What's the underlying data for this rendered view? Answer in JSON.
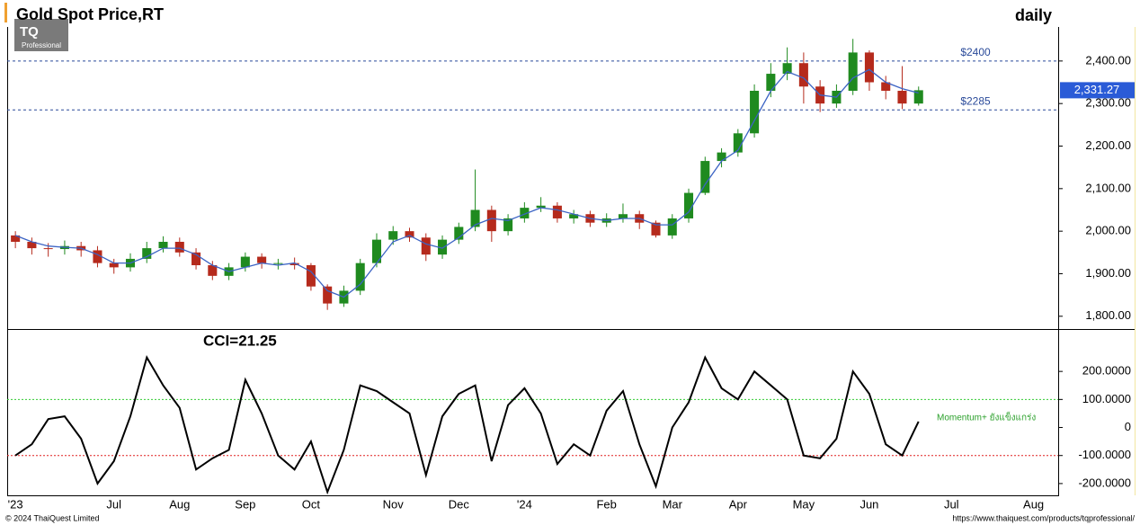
{
  "logo": {
    "mark": "TQ",
    "text": "Professional"
  },
  "footer": {
    "left": "© 2024 ThaiQuest Limited",
    "right": "https://www.thaiquest.com/products/tqprofessional/"
  },
  "chart_data": [
    {
      "type": "candlestick",
      "title": "Gold Spot Price,RT",
      "subtitle": "daily",
      "categories": [
        "'23",
        null,
        null,
        null,
        null,
        null,
        "Jul",
        null,
        null,
        null,
        "Aug",
        null,
        null,
        null,
        "Sep",
        null,
        null,
        null,
        "Oct",
        null,
        null,
        null,
        null,
        "Nov",
        null,
        null,
        null,
        "Dec",
        null,
        null,
        null,
        "'24",
        null,
        null,
        null,
        null,
        "Feb",
        null,
        null,
        null,
        "Mar",
        null,
        null,
        null,
        "Apr",
        null,
        null,
        null,
        "May",
        null,
        null,
        null,
        "Jun",
        null,
        null,
        null,
        null,
        "Jul",
        null,
        null,
        null,
        null,
        "Aug",
        null
      ],
      "open": [
        1990,
        1975,
        1960,
        1958,
        1965,
        1955,
        1925,
        1915,
        1935,
        1960,
        1975,
        1950,
        1920,
        1895,
        1915,
        1940,
        1925,
        1925,
        1920,
        1870,
        1830,
        1860,
        1925,
        1980,
        2000,
        1985,
        1945,
        1980,
        2010,
        2050,
        2000,
        2030,
        2055,
        2060,
        2030,
        2040,
        2020,
        2030,
        2040,
        2020,
        1990,
        2030,
        2090,
        2165,
        2185,
        2230,
        2330,
        2370,
        2395,
        2340,
        2300,
        2330,
        2420,
        2350,
        2330,
        2300,
        null,
        null,
        null,
        null,
        null,
        null,
        null,
        null
      ],
      "high": [
        2000,
        1985,
        1972,
        1978,
        1975,
        1965,
        1935,
        1948,
        1975,
        1988,
        1985,
        1960,
        1930,
        1925,
        1950,
        1948,
        1935,
        1938,
        1925,
        1875,
        1872,
        1935,
        1995,
        2012,
        2008,
        1995,
        1990,
        2020,
        2145,
        2060,
        2040,
        2068,
        2080,
        2068,
        2050,
        2048,
        2042,
        2065,
        2048,
        2025,
        2040,
        2100,
        2175,
        2195,
        2240,
        2345,
        2395,
        2432,
        2420,
        2355,
        2345,
        2452,
        2425,
        2365,
        2388,
        2340,
        null,
        null,
        null,
        null,
        null,
        null,
        null,
        null
      ],
      "low": [
        1960,
        1945,
        1940,
        1945,
        1940,
        1915,
        1900,
        1905,
        1925,
        1950,
        1940,
        1910,
        1885,
        1885,
        1905,
        1912,
        1910,
        1910,
        1860,
        1815,
        1822,
        1850,
        1915,
        1968,
        1975,
        1930,
        1935,
        1970,
        2000,
        1975,
        1990,
        2020,
        2045,
        2020,
        2018,
        2010,
        2010,
        2020,
        2005,
        1985,
        1982,
        2020,
        2085,
        2150,
        2175,
        2220,
        2315,
        2355,
        2300,
        2280,
        2290,
        2320,
        2330,
        2310,
        2287,
        2295,
        null,
        null,
        null,
        null,
        null,
        null,
        null,
        null
      ],
      "close": [
        1975,
        1960,
        1958,
        1965,
        1955,
        1925,
        1915,
        1935,
        1960,
        1975,
        1950,
        1920,
        1895,
        1915,
        1940,
        1925,
        1925,
        1920,
        1870,
        1830,
        1860,
        1925,
        1980,
        2000,
        1985,
        1945,
        1980,
        2010,
        2050,
        2000,
        2030,
        2055,
        2060,
        2030,
        2040,
        2020,
        2030,
        2040,
        2020,
        1990,
        2030,
        2090,
        2165,
        2185,
        2230,
        2330,
        2370,
        2395,
        2340,
        2300,
        2330,
        2420,
        2350,
        2330,
        2300,
        2331.27,
        null,
        null,
        null,
        null,
        null,
        null,
        null,
        null
      ],
      "color_up": "#1f8a1f",
      "color_down": "#b52a1c",
      "moving_average": {
        "color": "#3b63c4",
        "values": [
          1990,
          1975,
          1965,
          1962,
          1960,
          1945,
          1925,
          1925,
          1940,
          1960,
          1960,
          1945,
          1920,
          1905,
          1915,
          1925,
          1920,
          1925,
          1905,
          1860,
          1845,
          1875,
          1925,
          1975,
          1990,
          1970,
          1960,
          1985,
          2015,
          2030,
          2025,
          2040,
          2055,
          2050,
          2040,
          2030,
          2025,
          2030,
          2030,
          2015,
          2015,
          2045,
          2110,
          2165,
          2190,
          2260,
          2330,
          2375,
          2360,
          2320,
          2315,
          2360,
          2380,
          2350,
          2335,
          2325,
          null,
          null,
          null,
          null,
          null,
          null,
          null,
          null
        ]
      },
      "levels": [
        {
          "value": 2400,
          "label": "$2400"
        },
        {
          "value": 2285,
          "label": "$2285"
        }
      ],
      "last_price": {
        "value": 2331.27,
        "label": "2,331.27"
      },
      "ylim": [
        1770,
        2480
      ],
      "yticks": [
        {
          "value": 1800,
          "label": "1,800.00"
        },
        {
          "value": 1900,
          "label": "1,900.00"
        },
        {
          "value": 2000,
          "label": "2,000.00"
        },
        {
          "value": 2100,
          "label": "2,100.00"
        },
        {
          "value": 2200,
          "label": "2,200.00"
        },
        {
          "value": 2300,
          "label": "2,300.00"
        },
        {
          "value": 2400,
          "label": "2,400.00"
        }
      ]
    },
    {
      "type": "line",
      "title": "CCI=21.25",
      "annotation": "Momentum+ ยังแข็งแกร่ง",
      "color": "#000000",
      "values": [
        -100,
        -60,
        30,
        40,
        -40,
        -200,
        -120,
        40,
        250,
        150,
        70,
        -150,
        -110,
        -80,
        170,
        50,
        -100,
        -150,
        -50,
        -230,
        -80,
        150,
        130,
        90,
        50,
        -170,
        40,
        120,
        150,
        -120,
        80,
        140,
        50,
        -130,
        -60,
        -100,
        60,
        130,
        -60,
        -210,
        0,
        90,
        250,
        140,
        100,
        200,
        150,
        100,
        -100,
        -110,
        -40,
        200,
        120,
        -60,
        -100,
        21.25,
        null,
        null,
        null,
        null,
        null,
        null,
        null,
        null
      ],
      "levels": [
        {
          "value": 100,
          "color": "#33cc33"
        },
        {
          "value": -100,
          "color": "#e02020"
        }
      ],
      "ylim": [
        -242,
        348
      ],
      "yticks": [
        {
          "value": 200,
          "label": "200.0000"
        },
        {
          "value": 100,
          "label": "100.0000"
        },
        0,
        {
          "value": -100,
          "label": "-100.0000"
        },
        {
          "value": -200,
          "label": "-200.0000"
        }
      ]
    }
  ]
}
